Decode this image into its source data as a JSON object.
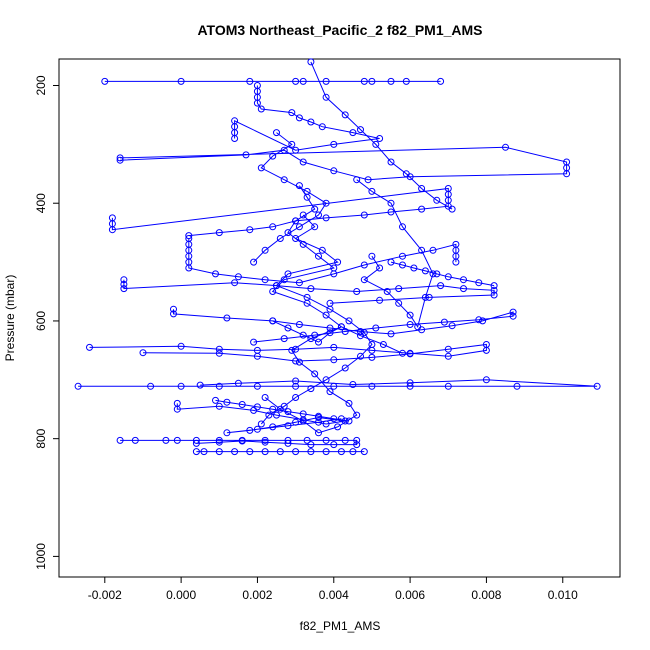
{
  "chart_data": {
    "type": "scatter",
    "title": "ATOM3 Northeast_Pacific_2 f82_PM1_AMS",
    "xlabel": "f82_PM1_AMS",
    "ylabel": "Pressure (mbar)",
    "xlim": [
      -0.0032,
      0.0115
    ],
    "ylim": [
      1035,
      155
    ],
    "y_reversed": true,
    "x_ticks": [
      -0.002,
      0.0,
      0.002,
      0.004,
      0.006,
      0.008,
      0.01
    ],
    "x_tick_labels": [
      "-0.002",
      "0.000",
      "0.002",
      "0.004",
      "0.006",
      "0.008",
      "0.010"
    ],
    "y_ticks": [
      200,
      400,
      600,
      800,
      1000
    ],
    "y_tick_labels": [
      "200",
      "400",
      "600",
      "800",
      "1000"
    ],
    "grid": false,
    "series_color": "#0000ff",
    "marker": "open-circle",
    "connect_points": true,
    "series": [
      {
        "x": [
          -0.002,
          0.0,
          0.0018,
          0.0032,
          0.0048,
          0.0055,
          0.0068,
          0.0059,
          0.005,
          0.0038,
          0.003
        ],
        "y": [
          193,
          193,
          193,
          193,
          193,
          193,
          193,
          193,
          193,
          193,
          193
        ]
      },
      {
        "x": [
          0.002,
          0.002,
          0.002,
          0.002,
          0.0021,
          0.0029,
          0.0031,
          0.0034,
          0.0037,
          0.0045,
          0.0052,
          0.004,
          0.003,
          0.0014,
          0.0014,
          0.0014,
          0.0014
        ],
        "y": [
          200,
          210,
          220,
          230,
          240,
          246,
          255,
          262,
          270,
          280,
          290,
          300,
          310,
          260,
          270,
          280,
          290
        ]
      },
      {
        "x": [
          -0.0016,
          0.0085,
          0.0101,
          0.0101,
          0.0101,
          0.006,
          0.0049,
          0.004,
          0.0032,
          0.0027,
          0.0017,
          -0.0016
        ],
        "y": [
          323,
          305,
          330,
          340,
          350,
          355,
          360,
          345,
          330,
          310,
          318,
          327
        ]
      },
      {
        "x": [
          -0.0018,
          -0.0018,
          -0.0018,
          0.007,
          0.007,
          0.007,
          0.007,
          0.0063,
          0.0055,
          0.0048,
          0.0038,
          0.003,
          0.0024,
          0.0018,
          0.001,
          0.0002
        ],
        "y": [
          425,
          435,
          445,
          375,
          385,
          395,
          405,
          410,
          415,
          420,
          425,
          430,
          440,
          445,
          450,
          455
        ]
      },
      {
        "x": [
          0.0002,
          0.0002,
          0.0002,
          0.0002,
          0.0002,
          0.0002,
          0.0009,
          0.0015,
          0.0022,
          0.0031,
          0.004,
          0.0048,
          0.0058,
          0.0066,
          0.0072,
          0.0072,
          0.0072,
          0.0072
        ],
        "y": [
          460,
          470,
          480,
          490,
          500,
          510,
          520,
          525,
          530,
          535,
          520,
          505,
          490,
          480,
          470,
          480,
          490,
          500
        ]
      },
      {
        "x": [
          -0.0015,
          -0.0015,
          -0.0015,
          0.0014,
          0.0025,
          0.0034,
          0.0046,
          0.0057,
          0.0068,
          0.0074,
          0.0082,
          0.0082,
          0.0065,
          0.0052,
          0.0039
        ],
        "y": [
          530,
          538,
          545,
          535,
          540,
          545,
          550,
          545,
          540,
          545,
          548,
          556,
          560,
          565,
          570
        ]
      },
      {
        "x": [
          -0.0002,
          -0.0002,
          0.0012,
          0.0024,
          0.0031,
          0.0039,
          0.0047,
          0.0055,
          0.0063,
          0.0071,
          0.0079,
          0.0087,
          0.0087,
          0.0078,
          0.0069,
          0.006,
          0.0051,
          0.0043,
          0.0035,
          0.0027,
          0.0019
        ],
        "y": [
          580,
          588,
          595,
          600,
          606,
          612,
          618,
          622,
          615,
          608,
          600,
          585,
          592,
          598,
          602,
          606,
          612,
          618,
          624,
          630,
          636
        ]
      },
      {
        "x": [
          -0.0024,
          0.0,
          0.001,
          0.002,
          0.003,
          0.004,
          0.005,
          0.006,
          0.007,
          0.008,
          0.008,
          0.007,
          0.006,
          0.005,
          0.004,
          0.003,
          0.002,
          0.001,
          -0.001
        ],
        "y": [
          645,
          643,
          648,
          650,
          648,
          645,
          650,
          655,
          660,
          650,
          640,
          648,
          656,
          662,
          666,
          668,
          660,
          655,
          654
        ]
      },
      {
        "x": [
          -0.0027,
          -0.0008,
          0.0,
          0.001,
          0.002,
          0.003,
          0.004,
          0.005,
          0.006,
          0.007,
          0.0088,
          0.0109,
          0.008,
          0.006,
          0.0045,
          0.003,
          0.0015,
          0.0005
        ],
        "y": [
          711,
          711,
          711,
          711,
          711,
          711,
          711,
          711,
          711,
          711,
          711,
          711,
          700,
          705,
          708,
          702,
          706,
          709
        ]
      },
      {
        "x": [
          -0.0001,
          -0.0001,
          0.001,
          0.0019,
          0.0025,
          0.0032,
          0.0038,
          0.0043,
          0.0036,
          0.003,
          0.0024,
          0.0018,
          0.0012,
          0.002,
          0.0028,
          0.0036,
          0.0042
        ],
        "y": [
          740,
          750,
          745,
          752,
          760,
          768,
          775,
          770,
          764,
          772,
          780,
          786,
          790,
          784,
          778,
          772,
          766
        ]
      },
      {
        "x": [
          -0.0016,
          -0.0012,
          -0.0004,
          -0.0001,
          0.0004,
          0.001,
          0.0016,
          0.0022,
          0.0028,
          0.0033,
          0.0038,
          0.0043,
          0.0046,
          0.0046,
          0.004,
          0.0034,
          0.0028,
          0.0022,
          0.0016,
          0.001,
          0.0004
        ],
        "y": [
          803,
          803,
          803,
          803,
          803,
          803,
          803,
          803,
          803,
          803,
          803,
          803,
          803,
          810,
          810,
          810,
          808,
          806,
          804,
          806,
          808
        ]
      },
      {
        "x": [
          0.0004,
          0.0006,
          0.001,
          0.0014,
          0.0018,
          0.0022,
          0.0026,
          0.003,
          0.0034,
          0.0038,
          0.0042,
          0.0045,
          0.0048
        ],
        "y": [
          822,
          822,
          822,
          822,
          822,
          822,
          822,
          822,
          822,
          822,
          822,
          822,
          822
        ]
      },
      {
        "x": [
          0.0031,
          0.0033,
          0.0035,
          0.003,
          0.0028,
          0.0032,
          0.0036,
          0.004,
          0.0027,
          0.0024,
          0.0033,
          0.0038,
          0.0042,
          0.0034,
          0.0029,
          0.0031,
          0.0035,
          0.0039,
          0.0044,
          0.0046,
          0.0041,
          0.0036,
          0.0032,
          0.0026,
          0.0022
        ],
        "y": [
          370,
          390,
          410,
          430,
          450,
          470,
          490,
          510,
          530,
          550,
          570,
          590,
          610,
          630,
          650,
          670,
          690,
          720,
          740,
          760,
          780,
          790,
          770,
          750,
          730
        ]
      },
      {
        "x": [
          0.0032,
          0.0035,
          0.003,
          0.0037,
          0.0041,
          0.0028,
          0.0025,
          0.0033,
          0.0039,
          0.0044,
          0.0048,
          0.005,
          0.0047,
          0.0043,
          0.0038,
          0.0034,
          0.003,
          0.0027,
          0.0023,
          0.0021
        ],
        "y": [
          420,
          440,
          460,
          480,
          500,
          520,
          540,
          560,
          580,
          600,
          620,
          640,
          660,
          680,
          700,
          715,
          730,
          745,
          760,
          775
        ]
      },
      {
        "x": [
          0.005,
          0.0052,
          0.0048,
          0.0054,
          0.0057,
          0.006,
          0.0062,
          0.0064,
          0.0066,
          0.0063,
          0.0058,
          0.0055,
          0.005,
          0.0046
        ],
        "y": [
          490,
          510,
          530,
          550,
          570,
          590,
          610,
          560,
          520,
          480,
          440,
          400,
          380,
          360
        ]
      },
      {
        "x": [
          0.0025,
          0.0029,
          0.0024,
          0.0021,
          0.0027,
          0.0033,
          0.0038,
          0.0036,
          0.0031,
          0.0026,
          0.0022,
          0.0019
        ],
        "y": [
          280,
          300,
          320,
          340,
          360,
          380,
          400,
          420,
          440,
          460,
          480,
          500
        ]
      },
      {
        "x": [
          0.0034,
          0.0038,
          0.0043,
          0.0047,
          0.0051,
          0.0055,
          0.0059,
          0.0063,
          0.0067,
          0.0071
        ],
        "y": [
          160,
          220,
          250,
          275,
          300,
          330,
          350,
          375,
          395,
          410
        ]
      },
      {
        "x": [
          0.0024,
          0.0028,
          0.0032,
          0.0036,
          0.0039,
          0.0042,
          0.0047,
          0.0053,
          0.0058
        ],
        "y": [
          600,
          612,
          624,
          636,
          620,
          610,
          625,
          640,
          655
        ]
      },
      {
        "x": [
          0.0055,
          0.0058,
          0.0061,
          0.0064,
          0.0067,
          0.007,
          0.0074,
          0.0078,
          0.0082
        ],
        "y": [
          500,
          505,
          510,
          515,
          520,
          525,
          530,
          535,
          540
        ]
      },
      {
        "x": [
          0.0009,
          0.0012,
          0.0016,
          0.002,
          0.0024,
          0.0028,
          0.0032,
          0.0036,
          0.004,
          0.0044
        ],
        "y": [
          735,
          738,
          742,
          746,
          750,
          754,
          758,
          762,
          766,
          770
        ]
      }
    ]
  }
}
